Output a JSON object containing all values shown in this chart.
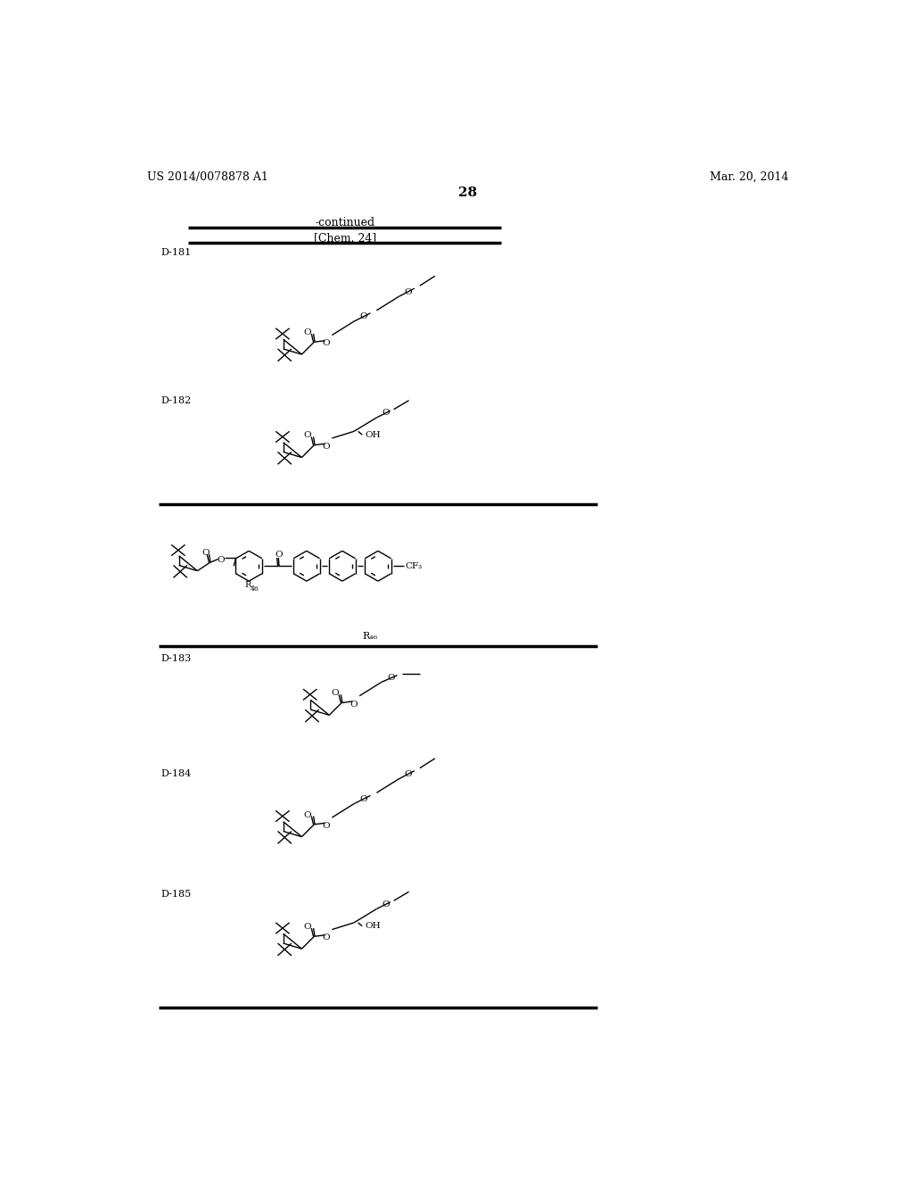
{
  "title_left": "US 2014/0078878 A1",
  "title_right": "Mar. 20, 2014",
  "page_number": "28",
  "continued_text": "-continued",
  "chem_label": "[Chem. 24]",
  "background_color": "#ffffff",
  "text_color": "#000000",
  "line_color": "#000000"
}
